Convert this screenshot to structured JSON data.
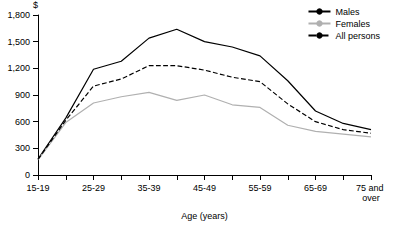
{
  "chart_data": {
    "type": "line",
    "x_label": "Age (years)",
    "y_label": "$",
    "categories": [
      "15-19",
      null,
      "25-29",
      null,
      "35-39",
      null,
      "45-49",
      null,
      "55-59",
      null,
      "65-69",
      null,
      "75 and over"
    ],
    "series": [
      {
        "name": "Males",
        "color": "#000000",
        "line_style": "solid",
        "marker": "none",
        "values": [
          180,
          640,
          1190,
          1280,
          1540,
          1640,
          1500,
          1440,
          1340,
          1060,
          720,
          580,
          510
        ]
      },
      {
        "name": "Females",
        "color": "#b0b0b0",
        "line_style": "solid",
        "marker": "none",
        "values": [
          170,
          590,
          810,
          880,
          930,
          840,
          900,
          790,
          760,
          560,
          490,
          460,
          430
        ]
      },
      {
        "name": "All persons",
        "color": "#000000",
        "line_style": "dashed",
        "marker": "none",
        "values": [
          175,
          615,
          1000,
          1080,
          1230,
          1230,
          1180,
          1100,
          1050,
          800,
          600,
          510,
          470
        ]
      }
    ],
    "ylim": [
      0,
      1800
    ],
    "yticks": [
      0,
      300,
      600,
      900,
      1200,
      1500,
      1800
    ],
    "grid": false,
    "legend": "upper right"
  }
}
